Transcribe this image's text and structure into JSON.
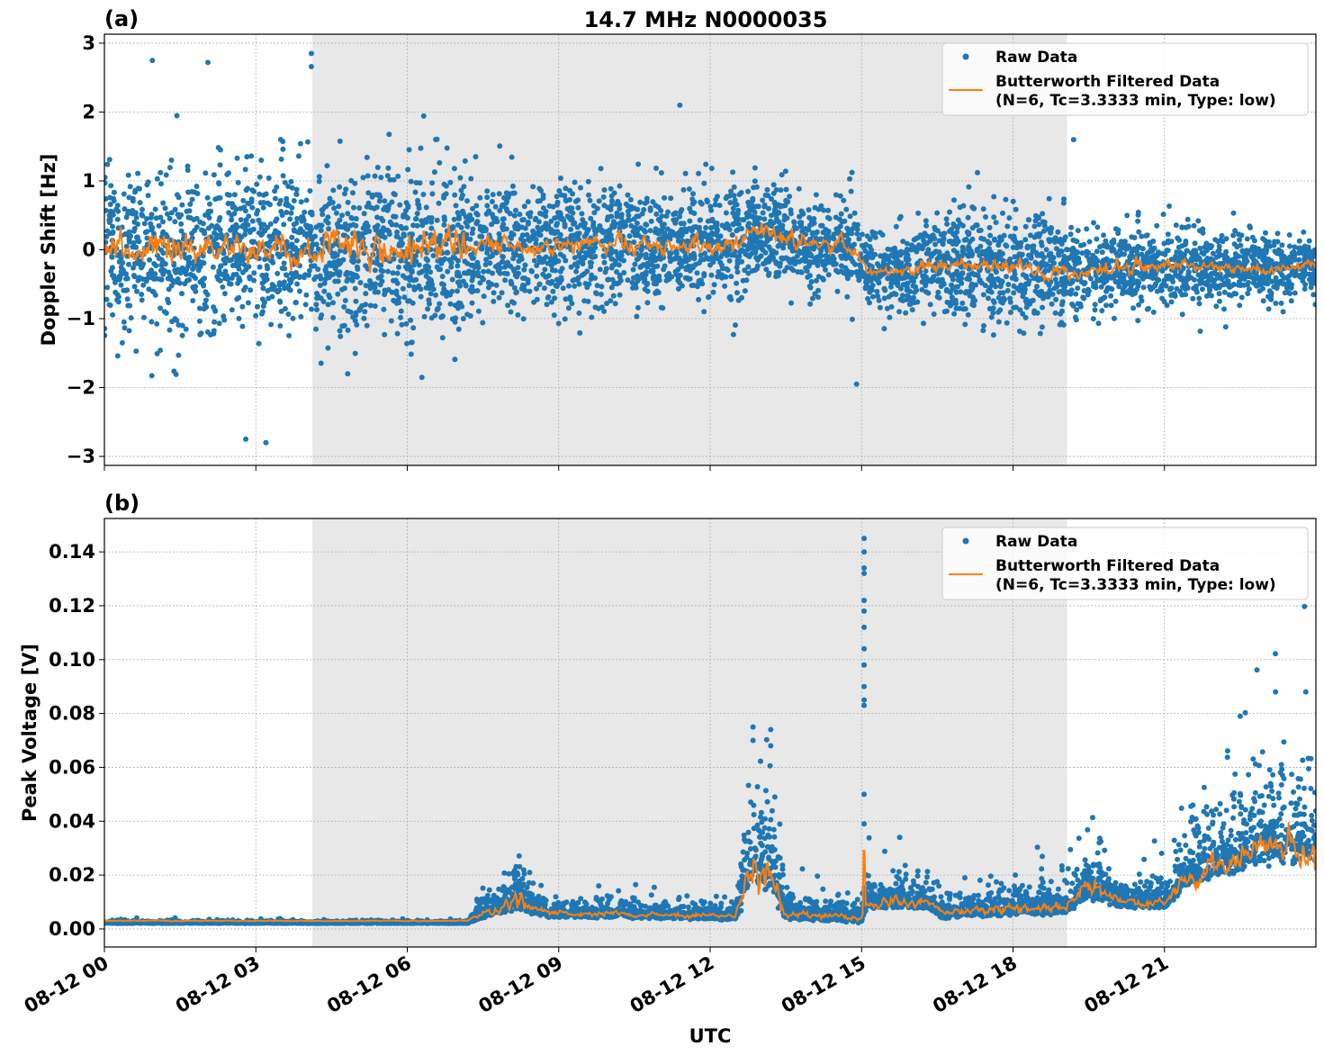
{
  "chart_data": {
    "type": "scatter",
    "title": "14.7 MHz N0000035",
    "xlabel": "UTC",
    "x_unit": "hours since 08-12 00 UTC",
    "xlim": [
      0,
      24
    ],
    "x_ticks": [
      0,
      3,
      6,
      9,
      12,
      15,
      18,
      21
    ],
    "x_tick_labels": [
      "08-12 00",
      "08-12 03",
      "08-12 06",
      "08-12 09",
      "08-12 12",
      "08-12 15",
      "08-12 18",
      "08-12 21"
    ],
    "shaded_region_hours": [
      4.12,
      19.07
    ],
    "colors": {
      "raw": "#1f77b4",
      "filtered": "#ff7f0e",
      "shade": "#e8e8e8"
    },
    "legend": {
      "placement": "top-right",
      "entries": [
        "Raw Data",
        "Butterworth Filtered Data",
        "(N=6, Tc=3.3333 min, Type: low)"
      ]
    },
    "panels": [
      {
        "label": "(a)",
        "ylabel": "Doppler Shift [Hz]",
        "ylim": [
          -3.13,
          3.13
        ],
        "y_ticks": [
          3,
          2,
          1,
          0,
          -1,
          -2,
          -3
        ],
        "y_tick_labels": [
          "3",
          "2",
          "1",
          "0",
          "−1",
          "−2",
          "−3"
        ],
        "grid": true,
        "series_envelope": {
          "hours": [
            0,
            7,
            7.4,
            12.6,
            12.8,
            14,
            14.9,
            15.1,
            16,
            16.2,
            19,
            19.1,
            21,
            23,
            24
          ],
          "mean": [
            0,
            0,
            0.05,
            0.05,
            0.3,
            0.1,
            0.0,
            -0.35,
            -0.3,
            -0.2,
            -0.3,
            -0.35,
            -0.2,
            -0.3,
            -0.2
          ],
          "raw_sd": [
            0.6,
            0.6,
            0.45,
            0.45,
            0.35,
            0.35,
            0.35,
            0.25,
            0.3,
            0.4,
            0.4,
            0.3,
            0.3,
            0.2,
            0.2
          ],
          "filt_dev": [
            0.18,
            0.18,
            0.1,
            0.1,
            0.1,
            0.1,
            0.08,
            0.06,
            0.06,
            0.08,
            0.08,
            0.08,
            0.06,
            0.05,
            0.05
          ]
        },
        "outliers": [
          [
            0.95,
            2.75
          ],
          [
            4.1,
            2.85
          ],
          [
            4.1,
            2.66
          ],
          [
            2.05,
            2.72
          ],
          [
            3.2,
            -2.8
          ],
          [
            2.8,
            -2.75
          ],
          [
            11.4,
            2.1
          ],
          [
            14.9,
            -1.95
          ],
          [
            19.2,
            1.6
          ]
        ]
      },
      {
        "label": "(b)",
        "ylabel": "Peak Voltage [V]",
        "ylim": [
          -0.0067,
          0.1524
        ],
        "y_ticks": [
          0.14,
          0.12,
          0.1,
          0.08,
          0.06,
          0.04,
          0.02,
          0.0
        ],
        "y_tick_labels": [
          "0.14",
          "0.12",
          "0.10",
          "0.08",
          "0.06",
          "0.04",
          "0.02",
          "0.00"
        ],
        "grid": true,
        "series_envelope": {
          "hours": [
            0,
            7.2,
            7.4,
            8.2,
            8.8,
            12.5,
            12.8,
            13.2,
            13.5,
            15,
            15.1,
            16.3,
            16.6,
            19,
            19.5,
            20.2,
            21,
            21.5,
            23,
            24
          ],
          "base": [
            0.003,
            0.003,
            0.005,
            0.01,
            0.006,
            0.005,
            0.02,
            0.02,
            0.006,
            0.004,
            0.01,
            0.01,
            0.006,
            0.008,
            0.015,
            0.01,
            0.01,
            0.02,
            0.03,
            0.03
          ],
          "spread": [
            0.0003,
            0.0003,
            0.002,
            0.006,
            0.002,
            0.002,
            0.015,
            0.015,
            0.004,
            0.002,
            0.004,
            0.004,
            0.003,
            0.004,
            0.008,
            0.003,
            0.004,
            0.008,
            0.012,
            0.012
          ]
        },
        "outliers": [
          [
            15.05,
            0.145
          ],
          [
            15.05,
            0.14
          ],
          [
            15.05,
            0.134
          ],
          [
            15.05,
            0.132
          ],
          [
            15.05,
            0.122
          ],
          [
            15.05,
            0.118
          ],
          [
            15.05,
            0.112
          ],
          [
            15.05,
            0.104
          ],
          [
            15.05,
            0.098
          ],
          [
            15.05,
            0.09
          ],
          [
            15.05,
            0.085
          ],
          [
            15.05,
            0.083
          ],
          [
            15.05,
            0.05
          ],
          [
            15.05,
            0.039
          ],
          [
            12.85,
            0.075
          ],
          [
            12.85,
            0.07
          ],
          [
            13.2,
            0.074
          ],
          [
            13.2,
            0.068
          ],
          [
            23.2,
            0.088
          ],
          [
            23.8,
            0.088
          ],
          [
            22.5,
            0.079
          ]
        ]
      }
    ]
  }
}
